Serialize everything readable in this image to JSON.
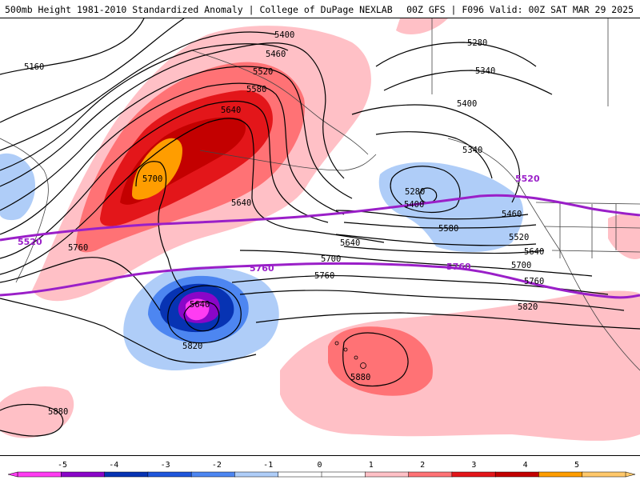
{
  "header": {
    "left_title": "500mb Height 1981-2010 Standardized Anomaly | College of DuPage NEXLAB",
    "right_title": "00Z GFS | F096 Valid: 00Z SAT MAR 29 2025"
  },
  "colors": {
    "anomaly_scale": [
      "#ff3cf2",
      "#8a06c8",
      "#0733b3",
      "#1f56db",
      "#4d86f1",
      "#afcdf8",
      "#ffffff",
      "#ffffff",
      "#ffc0c6",
      "#ff7275",
      "#e3161a",
      "#c30000",
      "#ff9d00",
      "#ffc86b"
    ],
    "highlight_contour": "#9a1fc8",
    "height_contour": "#000000"
  },
  "colorbar": {
    "ticks": [
      "-5",
      "-4",
      "-3",
      "-2",
      "-1",
      "0",
      "1",
      "2",
      "3",
      "4",
      "5"
    ]
  },
  "contour_labels": {
    "l5160": "5160",
    "l5400a": "5400",
    "l5460a": "5460",
    "l5520a": "5520",
    "l5580a": "5580",
    "l5640a": "5640",
    "l5700a": "5700",
    "l5640b": "5640",
    "l5760a": "5760",
    "l5280a": "5280",
    "l5340a": "5340",
    "l5400b": "5400",
    "l5340b": "5340",
    "l5280b": "5280",
    "l5400c": "5400",
    "l5460b": "5460",
    "l5580b": "5580",
    "l5520b": "5520",
    "l5640c": "5640",
    "l5640d": "5640",
    "l5700b": "5700",
    "l5700c": "5700",
    "l5760b": "5760",
    "l5760c": "5760",
    "l5820a": "5820",
    "l5640e": "5640",
    "l5820b": "5820",
    "l5880a": "5880",
    "l5880b": "5880"
  },
  "highlight_labels": {
    "p5520a": "5520",
    "p5520b": "5520",
    "p5760a": "5760",
    "p5760b": "5760"
  }
}
